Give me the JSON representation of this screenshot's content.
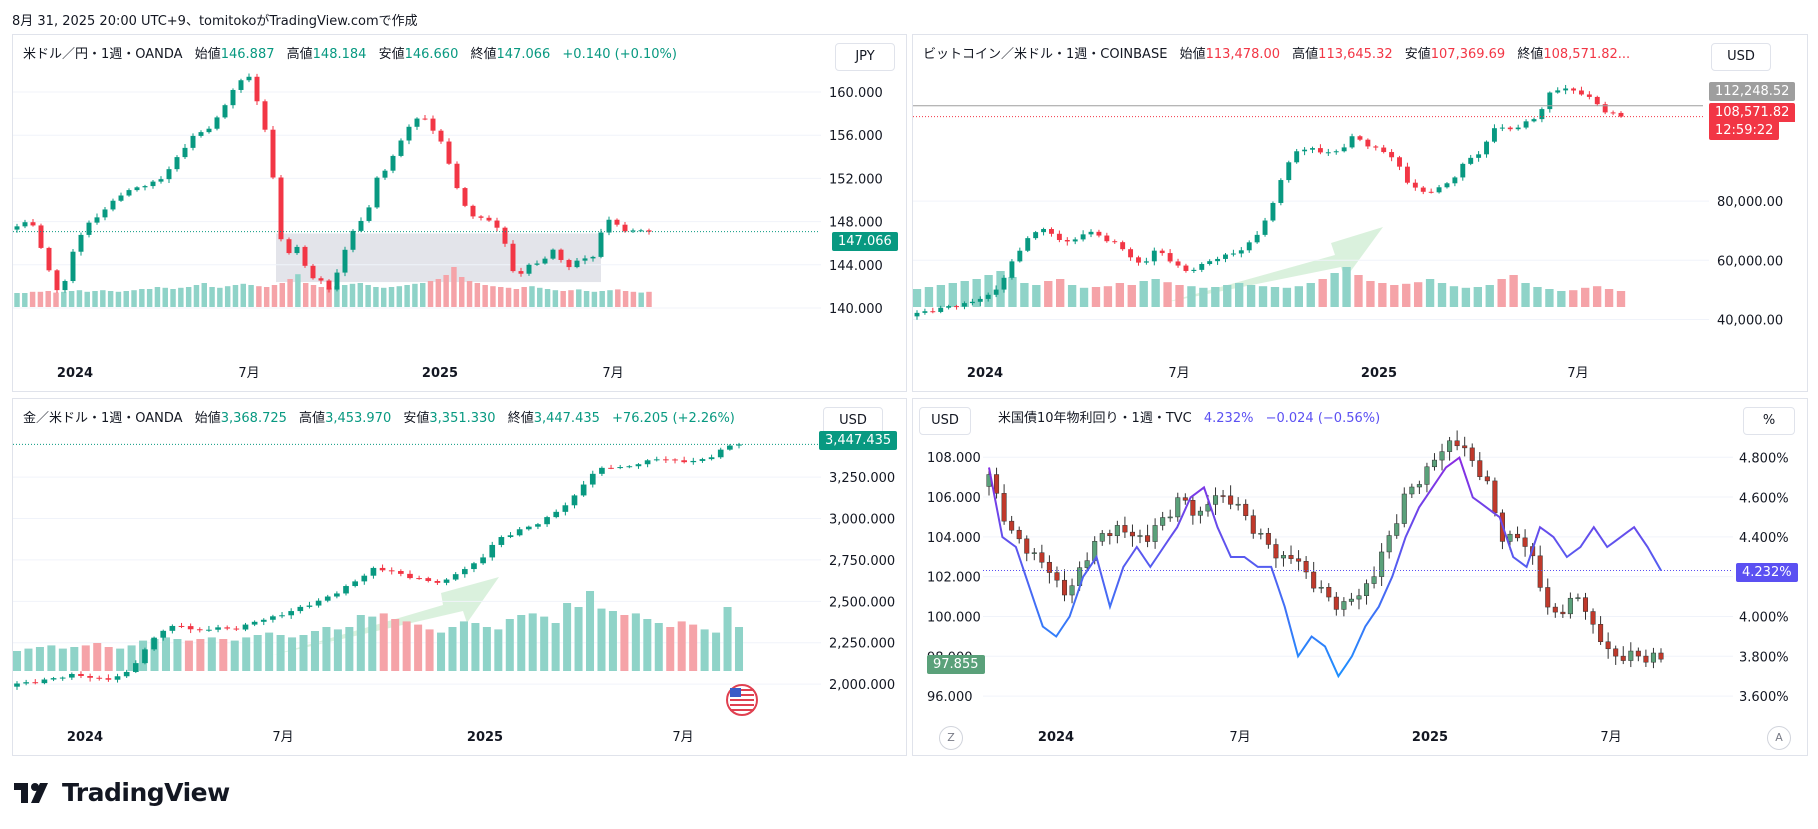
{
  "header": {
    "text": "8月 31, 2025 20:00 UTC+9、tomitokoがTradingView.comで作成"
  },
  "brand": {
    "name": "TradingView"
  },
  "colors": {
    "up": "#089981",
    "down": "#f23645",
    "upVol": "#8fd3c8",
    "downVol": "#f5a3a8",
    "yieldLine": "#5b50f2",
    "yieldLine2": "#2f8be3"
  },
  "panels": {
    "usdjpy": {
      "legend": {
        "name": "米ドル／円・1週・OANDA",
        "o_label": "始値",
        "o": "146.887",
        "h_label": "高値",
        "h": "148.184",
        "l_label": "安値",
        "l": "146.660",
        "c_label": "終値",
        "c": "147.066",
        "chg": "+0.140 (+0.10%)"
      },
      "currency": "JPY",
      "price_tag": "147.066"
    },
    "btcusd": {
      "legend": {
        "name": "ビットコイン／米ドル・1週・COINBASE",
        "o_label": "始値",
        "o": "113,478.00",
        "h_label": "高値",
        "h": "113,645.32",
        "l_label": "安値",
        "l": "107,369.69",
        "c_label": "終値",
        "c": "108,571.82..."
      },
      "currency": "USD",
      "tag_high": "112,248.52",
      "tag_price": "108,571.82",
      "tag_timer": "12:59:22"
    },
    "xauusd": {
      "legend": {
        "name": "金／米ドル・1週・OANDA",
        "o_label": "始値",
        "o": "3,368.725",
        "h_label": "高値",
        "h": "3,453.970",
        "l_label": "安値",
        "l": "3,351.330",
        "c_label": "終値",
        "c": "3,447.435",
        "chg": "+76.205 (+2.26%)"
      },
      "currency": "USD",
      "price_tag": "3,447.435"
    },
    "us10y": {
      "legend": {
        "name": "米国債10年物利回り・1週・TVC",
        "value": "4.232%",
        "chg": "−0.024 (−0.56%)"
      },
      "left_currency": "USD",
      "right_unit": "%",
      "tag_yield": "4.232%",
      "tag_dxy": "97.855",
      "btn_z": "Z",
      "btn_a": "A"
    }
  },
  "chart_data": [
    {
      "type": "candlestick",
      "title": "米ドル／円・1週・OANDA",
      "x_ticks": [
        "2024",
        "7月",
        "2025",
        "7月"
      ],
      "y_ticks": [
        "140.000",
        "144.000",
        "148.000",
        "152.000",
        "156.000",
        "160.000"
      ],
      "ylim": [
        137.5,
        162.5
      ],
      "last": 147.066,
      "shaded_range": {
        "y_from": 142.4,
        "y_to": 146.9
      },
      "anchors": [
        [
          0,
          147.5
        ],
        [
          3,
          148.2
        ],
        [
          6,
          144.0
        ],
        [
          9,
          141.0
        ],
        [
          12,
          146.0
        ],
        [
          15,
          148.0
        ],
        [
          18,
          149.0
        ],
        [
          21,
          150.5
        ],
        [
          24,
          151.0
        ],
        [
          27,
          151.5
        ],
        [
          30,
          152.0
        ],
        [
          33,
          154.0
        ],
        [
          36,
          155.8
        ],
        [
          39,
          156.5
        ],
        [
          42,
          158.0
        ],
        [
          45,
          160.8
        ],
        [
          48,
          161.5
        ],
        [
          50,
          158.0
        ],
        [
          52,
          155.0
        ],
        [
          54,
          146.5
        ],
        [
          56,
          145.0
        ],
        [
          58,
          146.0
        ],
        [
          60,
          142.5
        ],
        [
          62,
          143.0
        ],
        [
          64,
          141.5
        ],
        [
          66,
          143.5
        ],
        [
          68,
          146.0
        ],
        [
          70,
          148.0
        ],
        [
          72,
          148.5
        ],
        [
          74,
          152.0
        ],
        [
          76,
          153.0
        ],
        [
          78,
          154.5
        ],
        [
          80,
          156.5
        ],
        [
          82,
          157.5
        ],
        [
          84,
          157.6
        ],
        [
          86,
          156.0
        ],
        [
          88,
          155.0
        ],
        [
          90,
          151.5
        ],
        [
          92,
          149.5
        ],
        [
          94,
          148.5
        ],
        [
          96,
          148.2
        ],
        [
          98,
          148.0
        ],
        [
          100,
          146.5
        ],
        [
          102,
          143.5
        ],
        [
          104,
          143.0
        ],
        [
          106,
          144.5
        ],
        [
          108,
          144.0
        ],
        [
          110,
          145.5
        ],
        [
          112,
          144.5
        ],
        [
          114,
          143.5
        ],
        [
          116,
          145.0
        ],
        [
          118,
          144.0
        ],
        [
          120,
          147.0
        ],
        [
          122,
          148.2
        ],
        [
          124,
          147.5
        ],
        [
          126,
          147.0
        ],
        [
          128,
          147.2
        ],
        [
          130,
          147.066
        ]
      ],
      "volume": [
        0.35,
        0.35,
        0.38,
        0.38,
        0.4,
        0.36,
        0.38,
        0.4,
        0.42,
        0.38,
        0.4,
        0.42,
        0.4,
        0.38,
        0.4,
        0.42,
        0.45,
        0.45,
        0.5,
        0.48,
        0.45,
        0.48,
        0.5,
        0.55,
        0.6,
        0.5,
        0.48,
        0.52,
        0.55,
        0.58,
        0.55,
        0.52,
        0.5,
        0.55,
        0.6,
        0.7,
        0.82,
        0.6,
        0.55,
        0.5,
        0.48,
        0.52,
        0.55,
        0.58,
        0.6,
        0.55,
        0.5,
        0.48,
        0.5,
        0.52,
        0.55,
        0.58,
        0.6,
        0.65,
        0.7,
        0.8,
        1.0,
        0.75,
        0.65,
        0.6,
        0.55,
        0.52,
        0.5,
        0.48,
        0.45,
        0.5,
        0.52,
        0.48,
        0.45,
        0.42,
        0.4,
        0.42,
        0.44,
        0.4,
        0.38,
        0.4,
        0.42,
        0.44,
        0.4,
        0.38,
        0.36,
        0.38
      ]
    },
    {
      "type": "candlestick",
      "title": "ビットコイン／米ドル・1週・COINBASE",
      "x_ticks": [
        "2024",
        "7月",
        "2025",
        "7月"
      ],
      "y_ticks": [
        "40,000.00",
        "60,000.00",
        "80,000.00"
      ],
      "ylim": [
        28000,
        126000
      ],
      "last": 108571.82,
      "prev_high": 112248.52,
      "anchors": [
        [
          0,
          42000
        ],
        [
          4,
          44000
        ],
        [
          8,
          46000
        ],
        [
          10,
          48000
        ],
        [
          12,
          52000
        ],
        [
          14,
          62000
        ],
        [
          16,
          68000
        ],
        [
          18,
          71000
        ],
        [
          20,
          67000
        ],
        [
          22,
          66000
        ],
        [
          24,
          70000
        ],
        [
          26,
          68000
        ],
        [
          28,
          66000
        ],
        [
          30,
          62000
        ],
        [
          32,
          58000
        ],
        [
          34,
          64000
        ],
        [
          36,
          60000
        ],
        [
          38,
          56000
        ],
        [
          40,
          58000
        ],
        [
          42,
          60000
        ],
        [
          44,
          62000
        ],
        [
          46,
          63000
        ],
        [
          48,
          68000
        ],
        [
          50,
          75000
        ],
        [
          52,
          90000
        ],
        [
          54,
          97000
        ],
        [
          56,
          98000
        ],
        [
          58,
          96000
        ],
        [
          60,
          97000
        ],
        [
          62,
          102000
        ],
        [
          64,
          99000
        ],
        [
          66,
          97000
        ],
        [
          68,
          94000
        ],
        [
          70,
          85000
        ],
        [
          72,
          83000
        ],
        [
          74,
          84000
        ],
        [
          76,
          87000
        ],
        [
          78,
          94000
        ],
        [
          80,
          96000
        ],
        [
          82,
          105000
        ],
        [
          84,
          104000
        ],
        [
          86,
          106000
        ],
        [
          88,
          108000
        ],
        [
          90,
          117000
        ],
        [
          92,
          118000
        ],
        [
          94,
          117000
        ],
        [
          96,
          114000
        ],
        [
          98,
          110000
        ],
        [
          100,
          108571
        ]
      ],
      "volume": [
        0.45,
        0.5,
        0.55,
        0.6,
        0.65,
        0.7,
        0.8,
        0.9,
        0.75,
        0.6,
        0.55,
        0.65,
        0.7,
        0.55,
        0.48,
        0.5,
        0.52,
        0.6,
        0.55,
        0.65,
        0.7,
        0.62,
        0.55,
        0.52,
        0.48,
        0.5,
        0.55,
        0.6,
        0.55,
        0.52,
        0.5,
        0.48,
        0.52,
        0.6,
        0.7,
        0.85,
        1.0,
        0.8,
        0.65,
        0.6,
        0.55,
        0.58,
        0.62,
        0.7,
        0.6,
        0.52,
        0.48,
        0.5,
        0.55,
        0.7,
        0.8,
        0.6,
        0.5,
        0.45,
        0.4,
        0.42,
        0.48,
        0.52,
        0.45,
        0.4
      ]
    },
    {
      "type": "candlestick",
      "title": "金／米ドル・1週・OANDA",
      "x_ticks": [
        "2024",
        "7月",
        "2025",
        "7月"
      ],
      "y_ticks": [
        "2,000.000",
        "2,250.000",
        "2,500.000",
        "2,750.000",
        "3,000.000",
        "3,250.000"
      ],
      "ylim": [
        1880,
        3480
      ],
      "last": 3447.435,
      "anchors": [
        [
          0,
          2000
        ],
        [
          4,
          2030
        ],
        [
          6,
          2060
        ],
        [
          8,
          2040
        ],
        [
          10,
          2030
        ],
        [
          12,
          2050
        ],
        [
          14,
          2180
        ],
        [
          16,
          2320
        ],
        [
          18,
          2360
        ],
        [
          20,
          2320
        ],
        [
          22,
          2340
        ],
        [
          24,
          2330
        ],
        [
          26,
          2360
        ],
        [
          28,
          2400
        ],
        [
          30,
          2420
        ],
        [
          32,
          2470
        ],
        [
          34,
          2500
        ],
        [
          36,
          2560
        ],
        [
          38,
          2620
        ],
        [
          40,
          2700
        ],
        [
          42,
          2680
        ],
        [
          44,
          2650
        ],
        [
          46,
          2620
        ],
        [
          48,
          2620
        ],
        [
          50,
          2690
        ],
        [
          52,
          2750
        ],
        [
          54,
          2880
        ],
        [
          56,
          2920
        ],
        [
          58,
          2960
        ],
        [
          60,
          3020
        ],
        [
          62,
          3100
        ],
        [
          64,
          3240
        ],
        [
          66,
          3320
        ],
        [
          68,
          3300
        ],
        [
          70,
          3340
        ],
        [
          72,
          3360
        ],
        [
          74,
          3350
        ],
        [
          76,
          3340
        ],
        [
          78,
          3380
        ],
        [
          80,
          3440
        ],
        [
          81,
          3447
        ]
      ],
      "volume": [
        0.25,
        0.28,
        0.3,
        0.32,
        0.28,
        0.3,
        0.32,
        0.35,
        0.3,
        0.28,
        0.32,
        0.38,
        0.4,
        0.42,
        0.4,
        0.38,
        0.4,
        0.42,
        0.4,
        0.38,
        0.42,
        0.45,
        0.48,
        0.45,
        0.42,
        0.45,
        0.5,
        0.55,
        0.52,
        0.55,
        0.7,
        0.68,
        0.72,
        0.65,
        0.62,
        0.58,
        0.52,
        0.48,
        0.55,
        0.62,
        0.6,
        0.55,
        0.52,
        0.65,
        0.7,
        0.72,
        0.68,
        0.6,
        0.85,
        0.8,
        1.0,
        0.78,
        0.75,
        0.7,
        0.72,
        0.65,
        0.6,
        0.55,
        0.62,
        0.58,
        0.52,
        0.48,
        0.8,
        0.55
      ]
    },
    {
      "type": "candlestick+line",
      "title": "米国債10年物利回り・1週・TVC",
      "x_ticks": [
        "2024",
        "7月",
        "2025",
        "7月"
      ],
      "left_y_ticks": [
        "96.000",
        "98.000",
        "100.000",
        "102.000",
        "104.000",
        "106.000",
        "108.000"
      ],
      "right_y_ticks": [
        "3.600%",
        "3.800%",
        "4.000%",
        "4.200%",
        "4.400%",
        "4.600%",
        "4.800%"
      ],
      "left_ylim": [
        95.35,
        109.52
      ],
      "right_ylim": [
        3.535,
        4.954
      ],
      "candles_series": {
        "last": 97.855,
        "anchors": [
          [
            0,
            107
          ],
          [
            3,
            104
          ],
          [
            6,
            103
          ],
          [
            8,
            102
          ],
          [
            10,
            101
          ],
          [
            12,
            103
          ],
          [
            14,
            104
          ],
          [
            16,
            104.5
          ],
          [
            18,
            104
          ],
          [
            20,
            104
          ],
          [
            22,
            105
          ],
          [
            24,
            106
          ],
          [
            26,
            105
          ],
          [
            28,
            106
          ],
          [
            30,
            106
          ],
          [
            32,
            105
          ],
          [
            34,
            104
          ],
          [
            36,
            103
          ],
          [
            38,
            103
          ],
          [
            40,
            102
          ],
          [
            42,
            101
          ],
          [
            44,
            100.5
          ],
          [
            46,
            101
          ],
          [
            48,
            102
          ],
          [
            50,
            104
          ],
          [
            52,
            106
          ],
          [
            54,
            107
          ],
          [
            56,
            108
          ],
          [
            58,
            109
          ],
          [
            60,
            108
          ],
          [
            62,
            107
          ],
          [
            64,
            104
          ],
          [
            66,
            104
          ],
          [
            68,
            103
          ],
          [
            70,
            100
          ],
          [
            72,
            100.5
          ],
          [
            74,
            101
          ],
          [
            76,
            99
          ],
          [
            78,
            98
          ],
          [
            80,
            98
          ],
          [
            82,
            98
          ],
          [
            84,
            97.855
          ]
        ]
      },
      "line_series": {
        "last": 4.232,
        "anchors": [
          [
            0,
            4.75
          ],
          [
            2,
            4.4
          ],
          [
            4,
            4.35
          ],
          [
            6,
            4.15
          ],
          [
            8,
            3.95
          ],
          [
            10,
            3.9
          ],
          [
            12,
            4.0
          ],
          [
            14,
            4.2
          ],
          [
            16,
            4.3
          ],
          [
            18,
            4.05
          ],
          [
            20,
            4.25
          ],
          [
            22,
            4.35
          ],
          [
            24,
            4.25
          ],
          [
            26,
            4.35
          ],
          [
            28,
            4.45
          ],
          [
            30,
            4.6
          ],
          [
            32,
            4.65
          ],
          [
            34,
            4.45
          ],
          [
            36,
            4.3
          ],
          [
            38,
            4.3
          ],
          [
            40,
            4.25
          ],
          [
            42,
            4.25
          ],
          [
            44,
            4.05
          ],
          [
            46,
            3.8
          ],
          [
            48,
            3.9
          ],
          [
            50,
            3.85
          ],
          [
            52,
            3.7
          ],
          [
            54,
            3.8
          ],
          [
            56,
            3.95
          ],
          [
            58,
            4.05
          ],
          [
            60,
            4.2
          ],
          [
            62,
            4.4
          ],
          [
            64,
            4.55
          ],
          [
            66,
            4.65
          ],
          [
            68,
            4.75
          ],
          [
            70,
            4.8
          ],
          [
            72,
            4.6
          ],
          [
            74,
            4.55
          ],
          [
            76,
            4.5
          ],
          [
            78,
            4.3
          ],
          [
            80,
            4.25
          ],
          [
            82,
            4.45
          ],
          [
            84,
            4.4
          ],
          [
            86,
            4.3
          ],
          [
            88,
            4.35
          ],
          [
            90,
            4.45
          ],
          [
            92,
            4.35
          ],
          [
            94,
            4.4
          ],
          [
            96,
            4.45
          ],
          [
            98,
            4.35
          ],
          [
            100,
            4.232
          ]
        ]
      }
    }
  ]
}
